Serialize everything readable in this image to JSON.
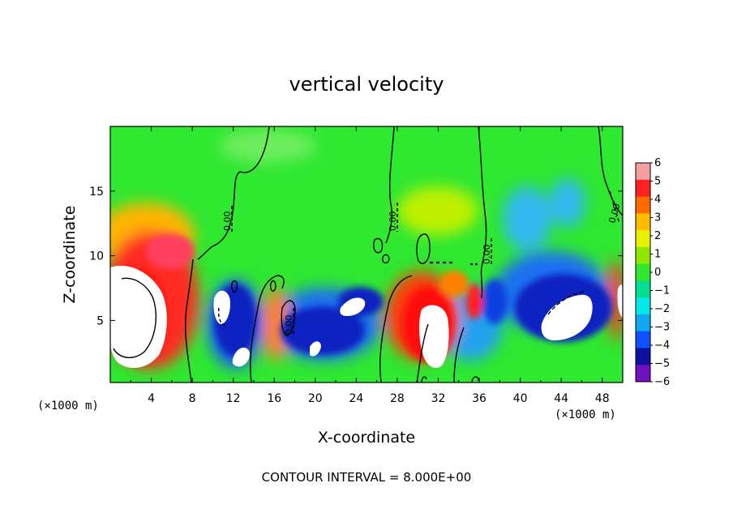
{
  "chart_data": {
    "type": "heatmap",
    "title": "vertical velocity",
    "xlabel": "X-coordinate",
    "ylabel": "Z-coordinate",
    "x_unit": "(×1000 m)",
    "x_unit_right": "(×1000 m)",
    "xlim": [
      0,
      50
    ],
    "ylim": [
      0.2,
      20
    ],
    "x_ticks": [
      "4",
      "8",
      "12",
      "16",
      "20",
      "24",
      "28",
      "32",
      "36",
      "40",
      "44",
      "48"
    ],
    "y_ticks": [
      "5",
      "10",
      "15"
    ],
    "colorbar": {
      "labels": [
        "6",
        "5",
        "4",
        "3",
        "2",
        "1",
        "0",
        "−1",
        "−2",
        "−3",
        "−4",
        "−5",
        "−6"
      ],
      "colors": [
        "#f4a0a0",
        "#ff2020",
        "#ff6a00",
        "#ffbb00",
        "#e8f000",
        "#90e800",
        "#30e830",
        "#00e090",
        "#00e8e8",
        "#10a8f0",
        "#1050ff",
        "#1010a0",
        "#7010c0"
      ]
    },
    "contour_labels": [
      "0.00",
      "0.00",
      "0.00",
      "0.00",
      "0.00"
    ],
    "contour_interval_text": "CONTOUR INTERVAL = 8.000E+00"
  }
}
